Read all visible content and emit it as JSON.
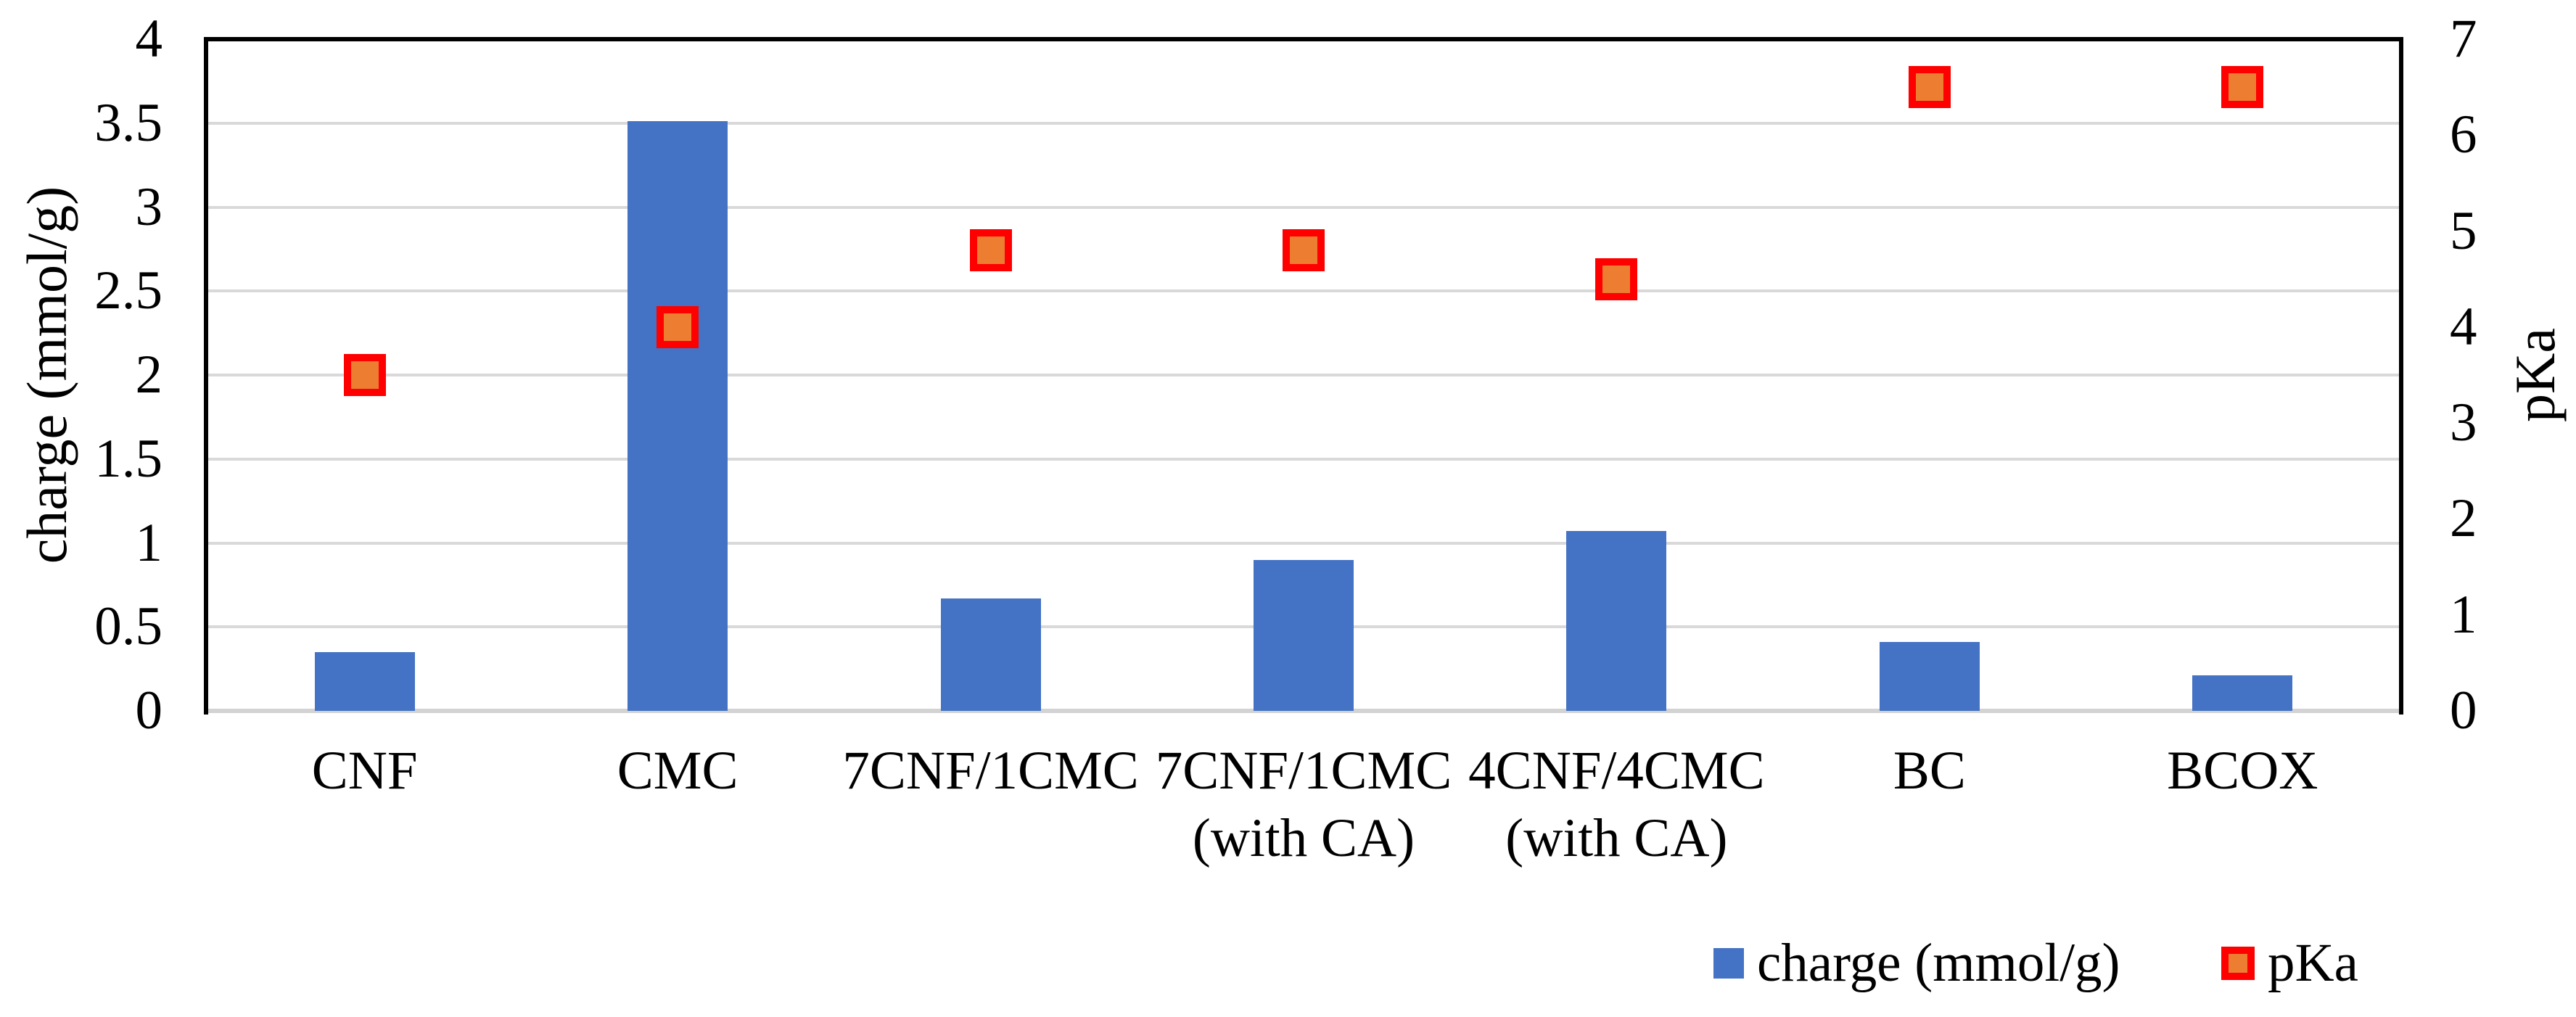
{
  "chart_data": {
    "type": "combo-bar-scatter",
    "categories": [
      "CNF",
      "CMC",
      "7CNF/1CMC",
      "7CNF/1CMC\n(with CA)",
      "4CNF/4CMC\n(with CA)",
      "BC",
      "BCOX"
    ],
    "series": [
      {
        "name": "charge (mmol/g)",
        "type": "bar",
        "axis": "left",
        "color": "#4472C4",
        "values": [
          0.35,
          3.51,
          0.67,
          0.9,
          1.07,
          0.41,
          0.21
        ]
      },
      {
        "name": "pKa",
        "type": "scatter",
        "marker": "square",
        "axis": "right",
        "fill": "#ED7D31",
        "outline": "#FF0000",
        "values": [
          3.5,
          4.0,
          4.8,
          4.8,
          4.5,
          6.5,
          6.5
        ]
      }
    ],
    "left_axis": {
      "title": "charge (mmol/g)",
      "min": 0,
      "max": 4,
      "tick_labels": [
        "0",
        "0.5",
        "1",
        "1.5",
        "2",
        "2.5",
        "3",
        "3.5",
        "4"
      ]
    },
    "right_axis": {
      "title": "pKa",
      "min": 0,
      "max": 7,
      "tick_labels": [
        "0",
        "1",
        "2",
        "3",
        "4",
        "5",
        "6",
        "7"
      ]
    },
    "grid": "horizontal",
    "legend_position": "bottom-right",
    "colors": {
      "gridline": "#D9D9D9",
      "baseline": "#D3D3D3",
      "frame": "#000000",
      "background": "#FFFFFF",
      "text": "#000000"
    }
  }
}
